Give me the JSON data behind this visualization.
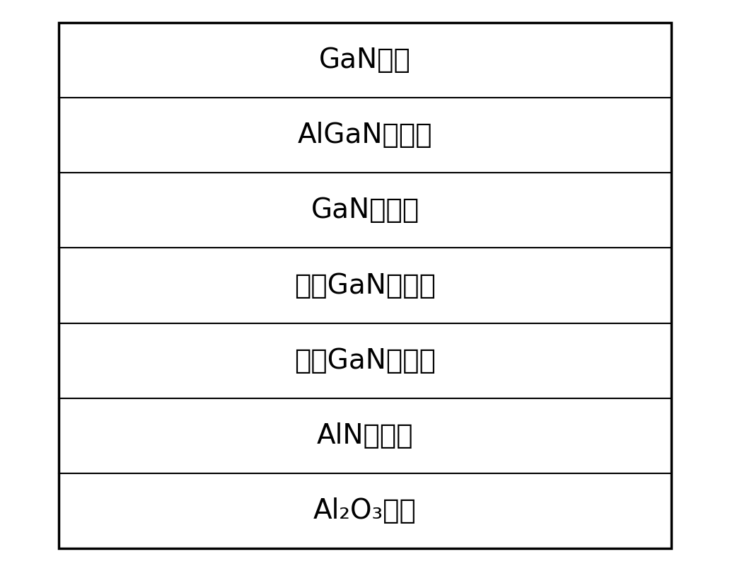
{
  "layers": [
    "GaN帽层",
    "AlGaN阻挡层",
    "GaN衬底层",
    "第二GaN缓冲层",
    "第一GaN缓冲层",
    "AlN过渡层",
    "Al₂O₃衬底"
  ],
  "layer_colors": [
    "#ffffff",
    "#ffffff",
    "#ffffff",
    "#ffffff",
    "#ffffff",
    "#ffffff",
    "#ffffff"
  ],
  "border_color": "#000000",
  "background_color": "#ffffff",
  "text_color": "#000000",
  "font_size": 28,
  "fig_width": 10.32,
  "fig_height": 8.07,
  "outer_border_lw": 2.5,
  "inner_border_lw": 1.5
}
